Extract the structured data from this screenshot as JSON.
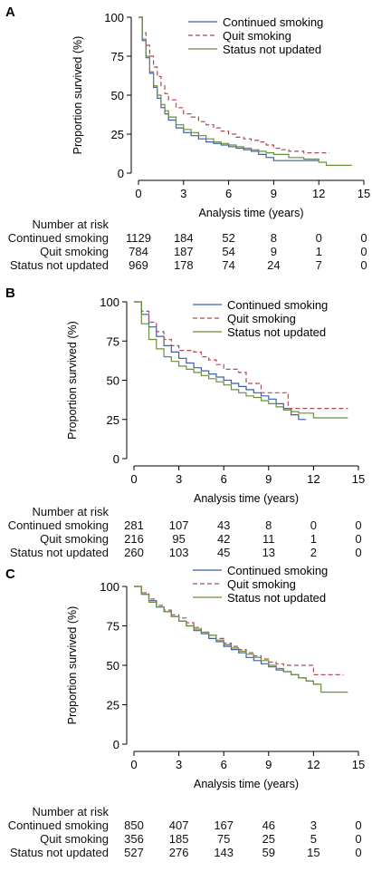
{
  "chart_data": [
    {
      "panel_label": "A",
      "type": "line",
      "line_shape": "step",
      "xlabel": "Analysis time (years)",
      "ylabel": "Proportion survived (%)",
      "xlim": [
        0,
        15
      ],
      "ylim": [
        0,
        100
      ],
      "xticks": [
        0,
        3,
        6,
        9,
        12,
        15
      ],
      "yticks": [
        0,
        25,
        50,
        75,
        100
      ],
      "grid": false,
      "legend_position": "top-right",
      "series": [
        {
          "name": "Continued  smoking",
          "color": "#3a5fa8",
          "dash": "none",
          "x": [
            0,
            0.25,
            0.5,
            0.75,
            1,
            1.25,
            1.5,
            1.75,
            2,
            2.5,
            3,
            3.5,
            4,
            4.5,
            5,
            5.5,
            6,
            6.5,
            7,
            7.5,
            8,
            8.5,
            9,
            10,
            11,
            12
          ],
          "y": [
            100,
            85,
            74,
            64,
            55,
            48,
            42,
            38,
            34,
            29,
            26,
            24,
            22,
            20,
            19,
            18,
            17,
            16,
            15,
            14,
            12,
            10,
            8,
            8,
            8,
            8
          ]
        },
        {
          "name": "Quit smoking",
          "color": "#b04a55",
          "dash": "5,3",
          "x": [
            0,
            0.25,
            0.5,
            0.75,
            1,
            1.25,
            1.5,
            1.75,
            2,
            2.5,
            3,
            3.5,
            4,
            4.5,
            5,
            5.5,
            6,
            6.5,
            7,
            7.5,
            8,
            8.5,
            9,
            9.5,
            10,
            11,
            12,
            12.7
          ],
          "y": [
            100,
            90,
            82,
            75,
            68,
            62,
            56,
            51,
            47,
            42,
            38,
            36,
            33,
            31,
            29,
            27,
            25,
            23,
            22,
            21,
            20,
            18,
            16,
            15,
            14,
            13,
            13,
            13
          ]
        },
        {
          "name": "Status not updated",
          "color": "#6b8e3a",
          "dash": "none",
          "x": [
            0,
            0.25,
            0.5,
            0.75,
            1,
            1.25,
            1.5,
            1.75,
            2,
            2.5,
            3,
            3.5,
            4,
            4.5,
            5,
            5.5,
            6,
            6.5,
            7,
            7.5,
            8,
            8.5,
            9,
            10,
            11,
            12,
            12.5,
            14.2
          ],
          "y": [
            100,
            86,
            75,
            65,
            56,
            50,
            44,
            40,
            36,
            31,
            28,
            26,
            24,
            22,
            20,
            19,
            18,
            17,
            16,
            15,
            14,
            13,
            12,
            10,
            9,
            7,
            5,
            5
          ]
        }
      ]
    },
    {
      "panel_label": "B",
      "type": "line",
      "line_shape": "step",
      "xlabel": "Analysis time (years)",
      "ylabel": "Proportion survived (%)",
      "xlim": [
        0,
        15
      ],
      "ylim": [
        0,
        100
      ],
      "xticks": [
        0,
        3,
        6,
        9,
        12,
        15
      ],
      "yticks": [
        0,
        25,
        50,
        75,
        100
      ],
      "grid": false,
      "legend_position": "top-right",
      "series": [
        {
          "name": "Continued  smoking",
          "color": "#3a5fa8",
          "dash": "none",
          "x": [
            0,
            0.5,
            1,
            1.5,
            2,
            2.5,
            3,
            3.5,
            4,
            4.5,
            5,
            5.5,
            6,
            6.5,
            7,
            7.5,
            8,
            8.5,
            9,
            9.5,
            10,
            10.5,
            11,
            11.5
          ],
          "y": [
            100,
            92,
            84,
            78,
            72,
            68,
            64,
            61,
            58,
            56,
            54,
            52,
            50,
            48,
            46,
            44,
            42,
            40,
            38,
            35,
            32,
            28,
            25,
            25
          ]
        },
        {
          "name": "Quit smoking",
          "color": "#b04a55",
          "dash": "5,3",
          "x": [
            0,
            0.5,
            1,
            1.5,
            2,
            2.5,
            3,
            4,
            4.5,
            5,
            5.5,
            6,
            7,
            7.5,
            8,
            8.5,
            9,
            10,
            10.3,
            11.5,
            14.3
          ],
          "y": [
            100,
            94,
            87,
            81,
            76,
            72,
            69,
            68,
            65,
            63,
            60,
            57,
            55,
            48,
            48,
            42,
            42,
            42,
            32,
            32,
            32
          ]
        },
        {
          "name": "Status not updated",
          "color": "#6b8e3a",
          "dash": "none",
          "x": [
            0,
            0.5,
            1,
            1.5,
            2,
            2.5,
            3,
            3.5,
            4,
            4.5,
            5,
            5.5,
            6,
            6.5,
            7,
            7.5,
            8,
            8.5,
            9,
            9.5,
            10,
            10.5,
            11,
            12,
            14.3
          ],
          "y": [
            100,
            86,
            76,
            70,
            65,
            62,
            59,
            57,
            55,
            53,
            51,
            49,
            47,
            44,
            42,
            40,
            39,
            37,
            35,
            33,
            31,
            30,
            29,
            26,
            26
          ]
        }
      ]
    },
    {
      "panel_label": "C",
      "type": "line",
      "line_shape": "step",
      "xlabel": "Analysis time (years)",
      "ylabel": "Proportion survived (%)",
      "xlim": [
        0,
        15
      ],
      "ylim": [
        0,
        100
      ],
      "xticks": [
        0,
        3,
        6,
        9,
        12,
        15
      ],
      "yticks": [
        0,
        25,
        50,
        75,
        100
      ],
      "grid": false,
      "legend_position": "top-right",
      "series": [
        {
          "name": "Continued  smoking",
          "color": "#3a5fa8",
          "dash": "none",
          "x": [
            0,
            0.5,
            1,
            1.5,
            2,
            2.5,
            3,
            3.5,
            4,
            4.5,
            5,
            5.5,
            6,
            6.5,
            7,
            7.5,
            8,
            8.5,
            9,
            9.5,
            10,
            10.5,
            11,
            11.5,
            12,
            12.3
          ],
          "y": [
            100,
            95,
            91,
            87,
            84,
            81,
            78,
            75,
            72,
            70,
            67,
            65,
            62,
            60,
            58,
            55,
            53,
            51,
            49,
            47,
            46,
            44,
            42,
            40,
            38,
            38
          ]
        },
        {
          "name": "Quit smoking",
          "color": "#b04a55",
          "dash": "5,3",
          "x": [
            0,
            0.5,
            1,
            1.5,
            2,
            2.5,
            3,
            3.5,
            4,
            4.5,
            5,
            5.5,
            6,
            6.5,
            7,
            7.5,
            8,
            8.5,
            9,
            9.5,
            10,
            11,
            12,
            14
          ],
          "y": [
            100,
            96,
            92,
            88,
            85,
            82,
            80,
            77,
            74,
            71,
            69,
            67,
            64,
            62,
            60,
            58,
            56,
            54,
            52,
            51,
            50,
            50,
            44,
            44
          ]
        },
        {
          "name": "Status not updated",
          "color": "#6b8e3a",
          "dash": "none",
          "x": [
            0,
            0.5,
            1,
            1.5,
            2,
            2.5,
            3,
            3.5,
            4,
            4.5,
            5,
            5.5,
            6,
            6.5,
            7,
            7.5,
            8,
            8.5,
            9,
            9.5,
            10,
            10.5,
            11,
            11.5,
            12,
            12.5,
            14.3
          ],
          "y": [
            100,
            95,
            90,
            87,
            84,
            81,
            78,
            75,
            73,
            71,
            69,
            66,
            63,
            61,
            59,
            57,
            55,
            53,
            50,
            48,
            46,
            44,
            42,
            40,
            38,
            33,
            33
          ]
        }
      ]
    }
  ],
  "risk_tables": [
    {
      "header": "Number at risk",
      "rows": [
        {
          "label": "Continued  smoking",
          "values": [
            "1129",
            "184",
            "52",
            "8",
            "0",
            "0"
          ]
        },
        {
          "label": "Quit smoking",
          "values": [
            "784",
            "187",
            "54",
            "9",
            "1",
            "0"
          ]
        },
        {
          "label": "Status not updated",
          "values": [
            "969",
            "178",
            "74",
            "24",
            "7",
            "0"
          ]
        }
      ]
    },
    {
      "header": "Number at risk",
      "rows": [
        {
          "label": "Continued  smoking",
          "values": [
            "281",
            "107",
            "43",
            "8",
            "0",
            "0"
          ]
        },
        {
          "label": "Quit smoking",
          "values": [
            "216",
            "95",
            "42",
            "11",
            "1",
            "0"
          ]
        },
        {
          "label": "Status not updated",
          "values": [
            "260",
            "103",
            "45",
            "13",
            "2",
            "0"
          ]
        }
      ]
    },
    {
      "header": "Number at risk",
      "rows": [
        {
          "label": "Continued  smoking",
          "values": [
            "850",
            "407",
            "167",
            "46",
            "3",
            "0"
          ]
        },
        {
          "label": "Quit smoking",
          "values": [
            "356",
            "185",
            "75",
            "25",
            "5",
            "0"
          ]
        },
        {
          "label": "Status not updated",
          "values": [
            "527",
            "276",
            "143",
            "59",
            "15",
            "0"
          ]
        }
      ]
    }
  ]
}
